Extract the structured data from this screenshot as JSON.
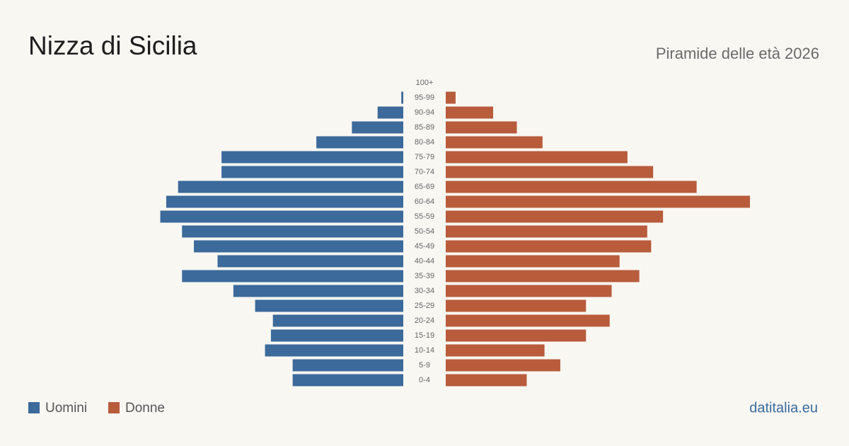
{
  "chart_data": {
    "type": "pyramid",
    "title": "Nizza di Sicilia",
    "subtitle": "Piramide delle età 2026",
    "source": "datitalia.eu",
    "categories": [
      "100+",
      "95-99",
      "90-94",
      "85-89",
      "80-84",
      "75-79",
      "70-74",
      "65-69",
      "60-64",
      "55-59",
      "50-54",
      "45-49",
      "40-44",
      "35-39",
      "30-34",
      "25-29",
      "20-24",
      "15-19",
      "10-14",
      "5-9",
      "0-4"
    ],
    "series": [
      {
        "name": "Uomini",
        "color": "#3b6a9b",
        "values": [
          0,
          1,
          13,
          26,
          44,
          92,
          92,
          114,
          120,
          123,
          112,
          106,
          94,
          112,
          86,
          75,
          66,
          67,
          70,
          56,
          56
        ]
      },
      {
        "name": "Donne",
        "color": "#b85c3c",
        "values": [
          0,
          5,
          24,
          36,
          49,
          92,
          105,
          127,
          154,
          110,
          102,
          104,
          88,
          98,
          84,
          71,
          83,
          71,
          50,
          58,
          41
        ]
      }
    ],
    "xlim": [
      0,
      154
    ]
  }
}
